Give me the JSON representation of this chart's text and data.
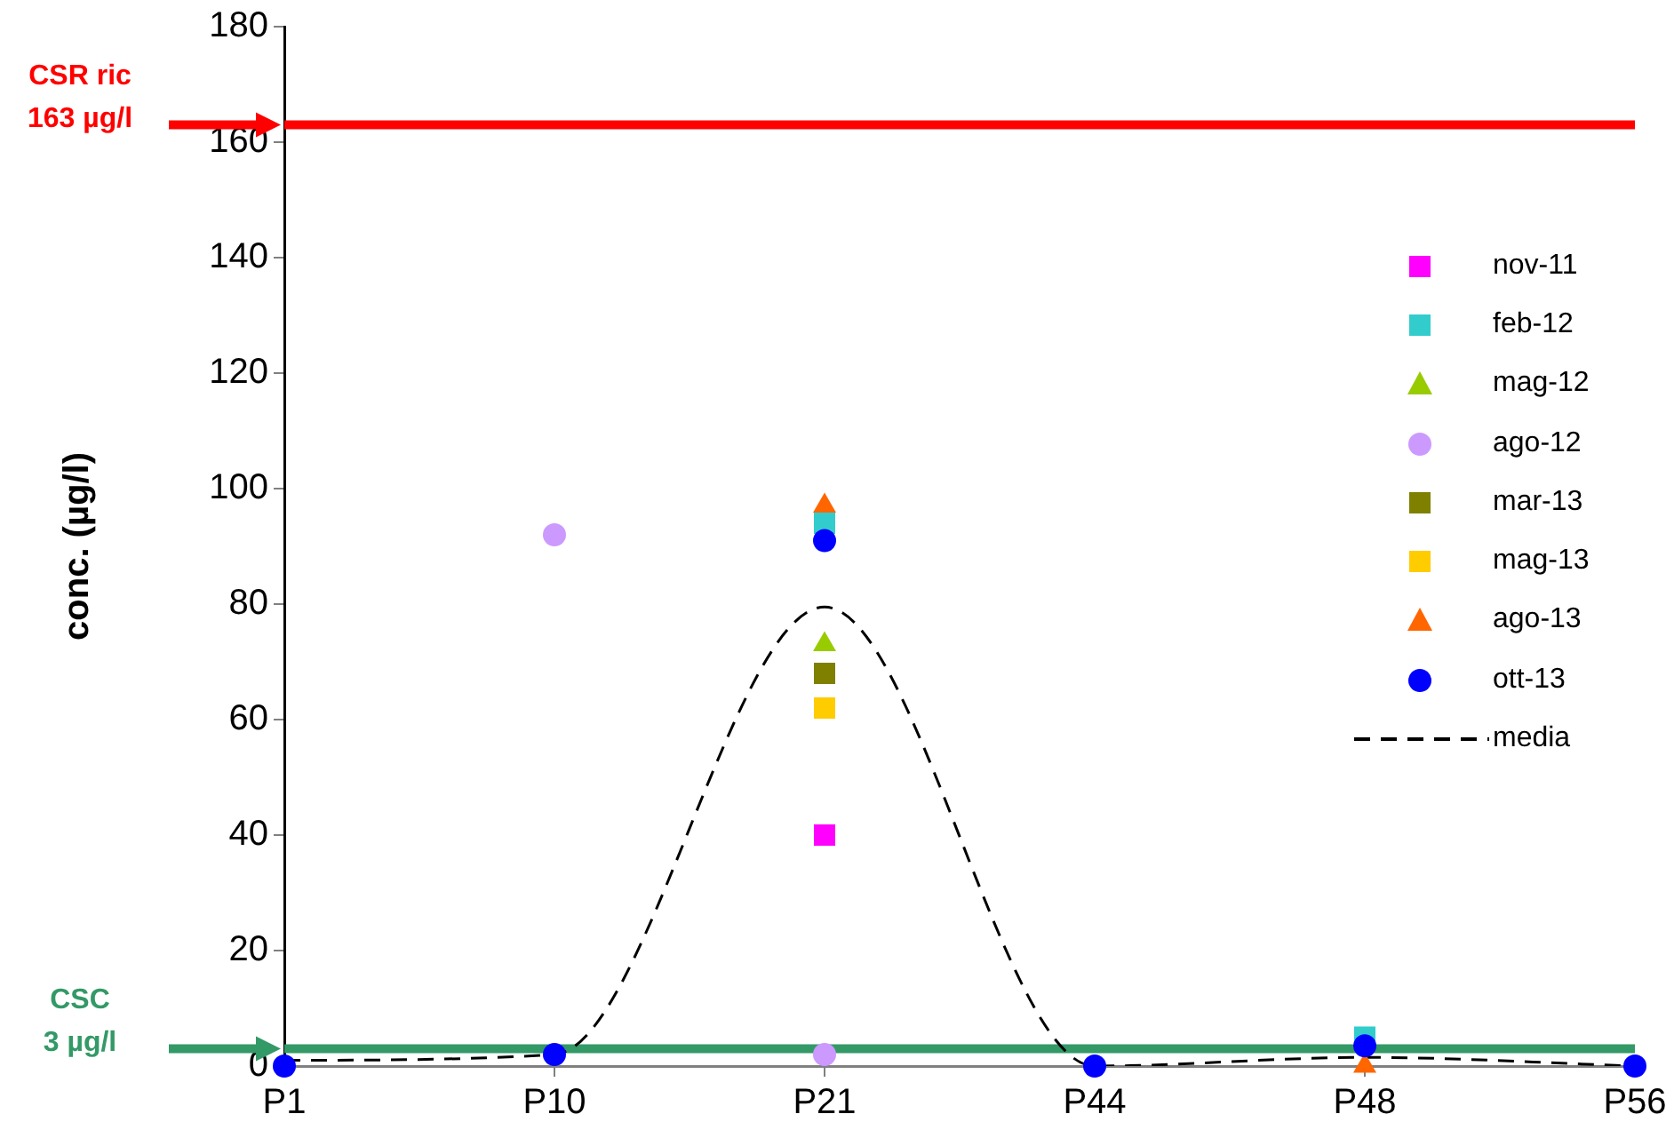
{
  "chart_data": {
    "type": "scatter",
    "ylabel": "conc. (µg/l)",
    "categories": [
      "P1",
      "P10",
      "P21",
      "P44",
      "P48",
      "P56"
    ],
    "ylim": [
      0,
      180
    ],
    "yticks": [
      0,
      20,
      40,
      60,
      80,
      100,
      120,
      140,
      160,
      180
    ],
    "grid": false,
    "legend": "right",
    "series": [
      {
        "name": "nov-11",
        "color": "#ff00ff",
        "marker": "square",
        "values": [
          null,
          null,
          40,
          null,
          null,
          null
        ]
      },
      {
        "name": "feb-12",
        "color": "#33cccc",
        "marker": "square",
        "values": [
          null,
          null,
          94,
          null,
          5,
          null
        ]
      },
      {
        "name": "mag-12",
        "color": "#99cc00",
        "marker": "triangle",
        "values": [
          null,
          null,
          73,
          null,
          null,
          null
        ]
      },
      {
        "name": "ago-12",
        "color": "#cc99ff",
        "marker": "circle",
        "values": [
          null,
          92,
          2,
          null,
          null,
          null
        ]
      },
      {
        "name": "mar-13",
        "color": "#808000",
        "marker": "square",
        "values": [
          null,
          null,
          68,
          null,
          null,
          null
        ]
      },
      {
        "name": "mag-13",
        "color": "#ffcc00",
        "marker": "square",
        "values": [
          null,
          null,
          62,
          null,
          null,
          null
        ]
      },
      {
        "name": "ago-13",
        "color": "#ff6600",
        "marker": "triangle",
        "values": [
          null,
          null,
          97,
          null,
          0,
          null
        ]
      },
      {
        "name": "ott-13",
        "color": "#0000ff",
        "marker": "circle",
        "values": [
          0,
          2,
          91,
          0,
          3.5,
          0
        ]
      },
      {
        "name": "media",
        "type": "line",
        "color": "#000000",
        "marker": "none",
        "line_style": "dashed",
        "values": [
          1,
          2,
          79.5,
          0,
          1.5,
          0
        ]
      }
    ],
    "ref_lines": [
      {
        "axis": "y",
        "value": 163,
        "label": "CSR ric\n163 µg/l",
        "color": "#ff0000"
      },
      {
        "axis": "y",
        "value": 3,
        "label": "CSC\n3 µg/l",
        "color": "#339966"
      }
    ]
  }
}
